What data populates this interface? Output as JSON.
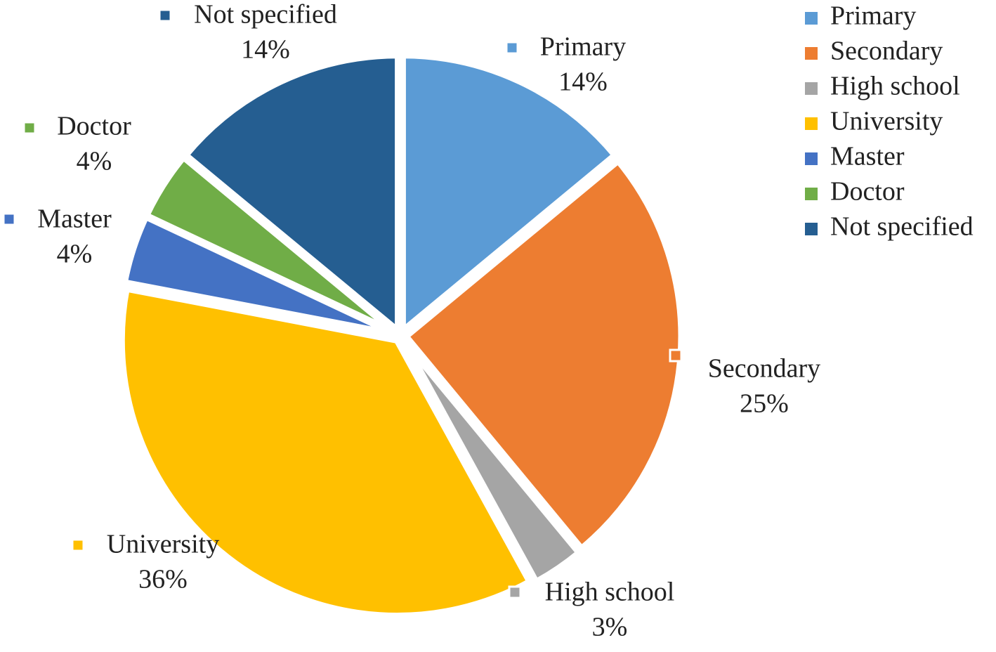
{
  "chart_data": {
    "type": "pie",
    "categories": [
      "Primary",
      "Secondary",
      "High school",
      "University",
      "Master",
      "Doctor",
      "Not specified"
    ],
    "values": [
      14,
      25,
      3,
      36,
      4,
      4,
      14
    ],
    "value_labels": [
      "14%",
      "25%",
      "3%",
      "36%",
      "4%",
      "4%",
      "14%"
    ],
    "colors": [
      "#5B9BD5",
      "#ED7D31",
      "#A5A5A5",
      "#FFC000",
      "#4472C4",
      "#70AD47",
      "#255E91"
    ],
    "legend": {
      "position": "top-right",
      "entries": [
        "Primary",
        "Secondary",
        "High school",
        "University",
        "Master",
        "Doctor",
        "Not specified"
      ]
    },
    "title": ""
  }
}
